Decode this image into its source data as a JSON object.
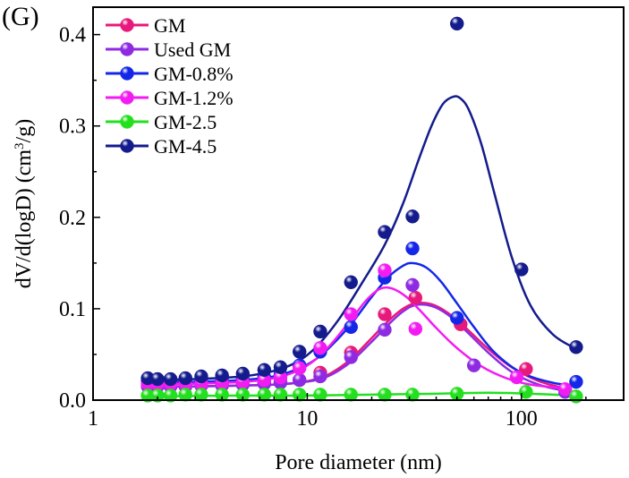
{
  "panel_label": "(G)",
  "chart_data": {
    "type": "scatter",
    "title": "",
    "xlabel": "Pore diameter (nm)",
    "ylabel_parts": [
      "dV/d(logD) (cm",
      "3",
      "/g)"
    ],
    "x_scale": "log",
    "xlim": [
      1,
      300
    ],
    "ylim": [
      0,
      0.43
    ],
    "x_ticks": [
      1,
      10,
      100
    ],
    "x_tick_labels": [
      "1",
      "10",
      "100"
    ],
    "y_ticks": [
      0.0,
      0.1,
      0.2,
      0.3,
      0.4
    ],
    "y_tick_labels": [
      "0.0",
      "0.1",
      "0.2",
      "0.3",
      "0.4"
    ],
    "grid": false,
    "legend_position": "top-left",
    "series": [
      {
        "name": "GM",
        "color": "#e8197c",
        "x": [
          1.8,
          2.0,
          2.3,
          2.7,
          3.2,
          4.0,
          5.0,
          6.3,
          7.5,
          9.2,
          11.5,
          16,
          23,
          32,
          52,
          105,
          160
        ],
        "y": [
          0.016,
          0.016,
          0.016,
          0.016,
          0.016,
          0.017,
          0.018,
          0.019,
          0.02,
          0.022,
          0.03,
          0.052,
          0.094,
          0.112,
          0.083,
          0.034,
          0.011
        ],
        "fit_x": [
          1.8,
          3,
          5,
          7,
          9,
          11,
          13,
          16,
          20,
          24,
          28,
          32,
          38,
          45,
          55,
          70,
          90,
          120,
          160
        ],
        "fit_y": [
          0.015,
          0.015,
          0.016,
          0.017,
          0.019,
          0.023,
          0.03,
          0.045,
          0.068,
          0.087,
          0.1,
          0.106,
          0.105,
          0.096,
          0.079,
          0.056,
          0.036,
          0.021,
          0.013
        ]
      },
      {
        "name": "Used GM",
        "color": "#8e2be2",
        "x": [
          1.8,
          2.0,
          2.3,
          2.7,
          3.2,
          4.0,
          5.0,
          6.3,
          7.5,
          9.2,
          11.5,
          16,
          23,
          31,
          60,
          160
        ],
        "y": [
          0.015,
          0.015,
          0.015,
          0.015,
          0.016,
          0.016,
          0.017,
          0.018,
          0.019,
          0.022,
          0.026,
          0.047,
          0.077,
          0.126,
          0.038,
          0.009
        ],
        "fit_x": [
          1.8,
          3,
          5,
          7,
          9,
          11,
          13,
          16,
          20,
          24,
          28,
          32,
          38,
          45,
          55,
          70,
          90,
          120,
          160
        ],
        "fit_y": [
          0.014,
          0.015,
          0.016,
          0.017,
          0.019,
          0.022,
          0.028,
          0.042,
          0.064,
          0.083,
          0.097,
          0.104,
          0.103,
          0.094,
          0.076,
          0.052,
          0.031,
          0.017,
          0.01
        ]
      },
      {
        "name": "GM-0.8%",
        "color": "#1427e8",
        "x": [
          1.8,
          2.0,
          2.3,
          2.7,
          3.2,
          4.0,
          5.0,
          6.3,
          7.5,
          9.2,
          11.5,
          16,
          23,
          31,
          50,
          180
        ],
        "y": [
          0.021,
          0.021,
          0.021,
          0.021,
          0.021,
          0.022,
          0.023,
          0.025,
          0.028,
          0.038,
          0.053,
          0.08,
          0.134,
          0.166,
          0.09,
          0.02
        ],
        "fit_x": [
          1.8,
          3,
          5,
          7,
          9,
          11,
          13,
          16,
          20,
          24,
          28,
          31,
          36,
          42,
          50,
          60,
          75,
          100,
          140,
          180
        ],
        "fit_y": [
          0.02,
          0.02,
          0.022,
          0.026,
          0.034,
          0.045,
          0.06,
          0.083,
          0.113,
          0.135,
          0.147,
          0.15,
          0.145,
          0.13,
          0.106,
          0.08,
          0.052,
          0.03,
          0.019,
          0.016
        ]
      },
      {
        "name": "GM-1.2%",
        "color": "#f21cf2",
        "x": [
          1.8,
          2.0,
          2.3,
          2.7,
          3.2,
          4.0,
          5.0,
          6.3,
          7.5,
          9.2,
          11.5,
          16,
          23,
          32,
          95,
          160
        ],
        "y": [
          0.018,
          0.018,
          0.018,
          0.018,
          0.018,
          0.019,
          0.02,
          0.022,
          0.025,
          0.035,
          0.057,
          0.094,
          0.142,
          0.078,
          0.025,
          0.012
        ],
        "fit_x": [
          1.8,
          3,
          5,
          7,
          9,
          11,
          13,
          16,
          19,
          22,
          25,
          29,
          34,
          40,
          50,
          65,
          85,
          110,
          160
        ],
        "fit_y": [
          0.018,
          0.018,
          0.02,
          0.024,
          0.032,
          0.045,
          0.062,
          0.088,
          0.11,
          0.122,
          0.122,
          0.113,
          0.097,
          0.079,
          0.057,
          0.037,
          0.024,
          0.017,
          0.013
        ]
      },
      {
        "name": "GM-2.5",
        "color": "#22e01e",
        "x": [
          1.8,
          2.0,
          2.3,
          2.7,
          3.2,
          4.0,
          5.0,
          6.3,
          7.5,
          9.2,
          11.5,
          16,
          23,
          31,
          50,
          105,
          180
        ],
        "y": [
          0.005,
          0.005,
          0.005,
          0.006,
          0.006,
          0.006,
          0.006,
          0.006,
          0.006,
          0.006,
          0.006,
          0.006,
          0.006,
          0.006,
          0.007,
          0.009,
          0.004
        ],
        "fit_x": [
          1.8,
          5,
          10,
          20,
          40,
          70,
          110,
          180
        ],
        "fit_y": [
          0.004,
          0.005,
          0.005,
          0.006,
          0.007,
          0.008,
          0.007,
          0.005
        ]
      },
      {
        "name": "GM-4.5",
        "color": "#141b8c",
        "x": [
          1.8,
          2.0,
          2.3,
          2.7,
          3.2,
          4.0,
          5.0,
          6.3,
          7.5,
          9.2,
          11.5,
          16,
          23,
          31,
          50,
          100,
          180
        ],
        "y": [
          0.024,
          0.023,
          0.023,
          0.024,
          0.026,
          0.027,
          0.029,
          0.033,
          0.036,
          0.053,
          0.075,
          0.129,
          0.184,
          0.201,
          0.412,
          0.143,
          0.058
        ],
        "fit_x": [
          1.8,
          3,
          5,
          7,
          9,
          11,
          14,
          18,
          23,
          28,
          33,
          38,
          43,
          48,
          52,
          57,
          65,
          75,
          90,
          110,
          140,
          180
        ],
        "fit_y": [
          0.022,
          0.023,
          0.026,
          0.032,
          0.042,
          0.058,
          0.088,
          0.128,
          0.17,
          0.215,
          0.262,
          0.3,
          0.324,
          0.332,
          0.33,
          0.317,
          0.28,
          0.225,
          0.157,
          0.104,
          0.072,
          0.056
        ]
      }
    ]
  }
}
